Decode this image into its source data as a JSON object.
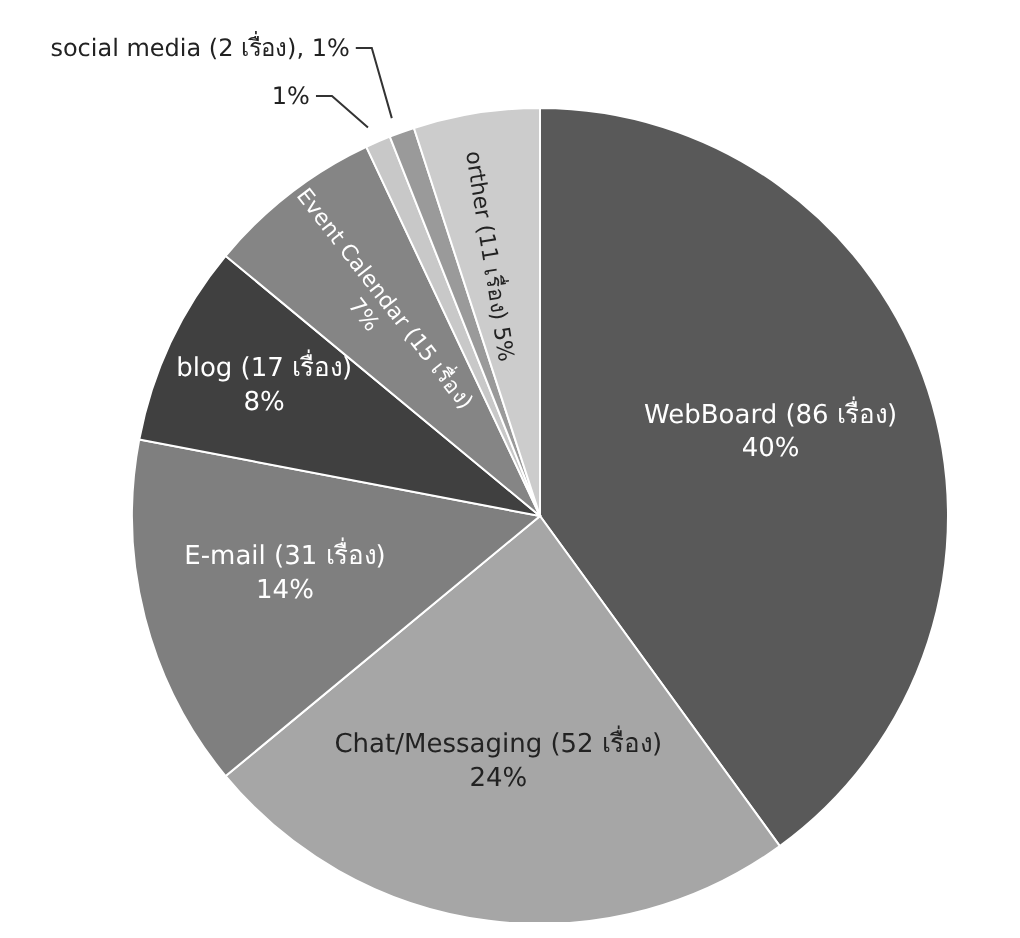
{
  "chart_data": {
    "type": "pie",
    "categories": [
      "WebBoard (86 เรื่อง)",
      "Chat/Messaging (52 เรื่อง)",
      "E-mail (31 เรื่อง)",
      "blog (17 เรื่อง)",
      "Event Calendar (15 เรื่อง)",
      null,
      "social media (2 เรื่อง)",
      "orther (11 เรื่อง)"
    ],
    "values": [
      40,
      24,
      14,
      8,
      7,
      1,
      1,
      5
    ],
    "value_labels": [
      "40%",
      "24%",
      "14%",
      "8%",
      "7%",
      "1%",
      "1%",
      "5%"
    ],
    "colors": [
      "#595959",
      "#a6a6a6",
      "#7f7f7f",
      "#404040",
      "#858585",
      "#c8c8c8",
      "#9a9a9a",
      "#cccccc"
    ],
    "legend": false
  }
}
